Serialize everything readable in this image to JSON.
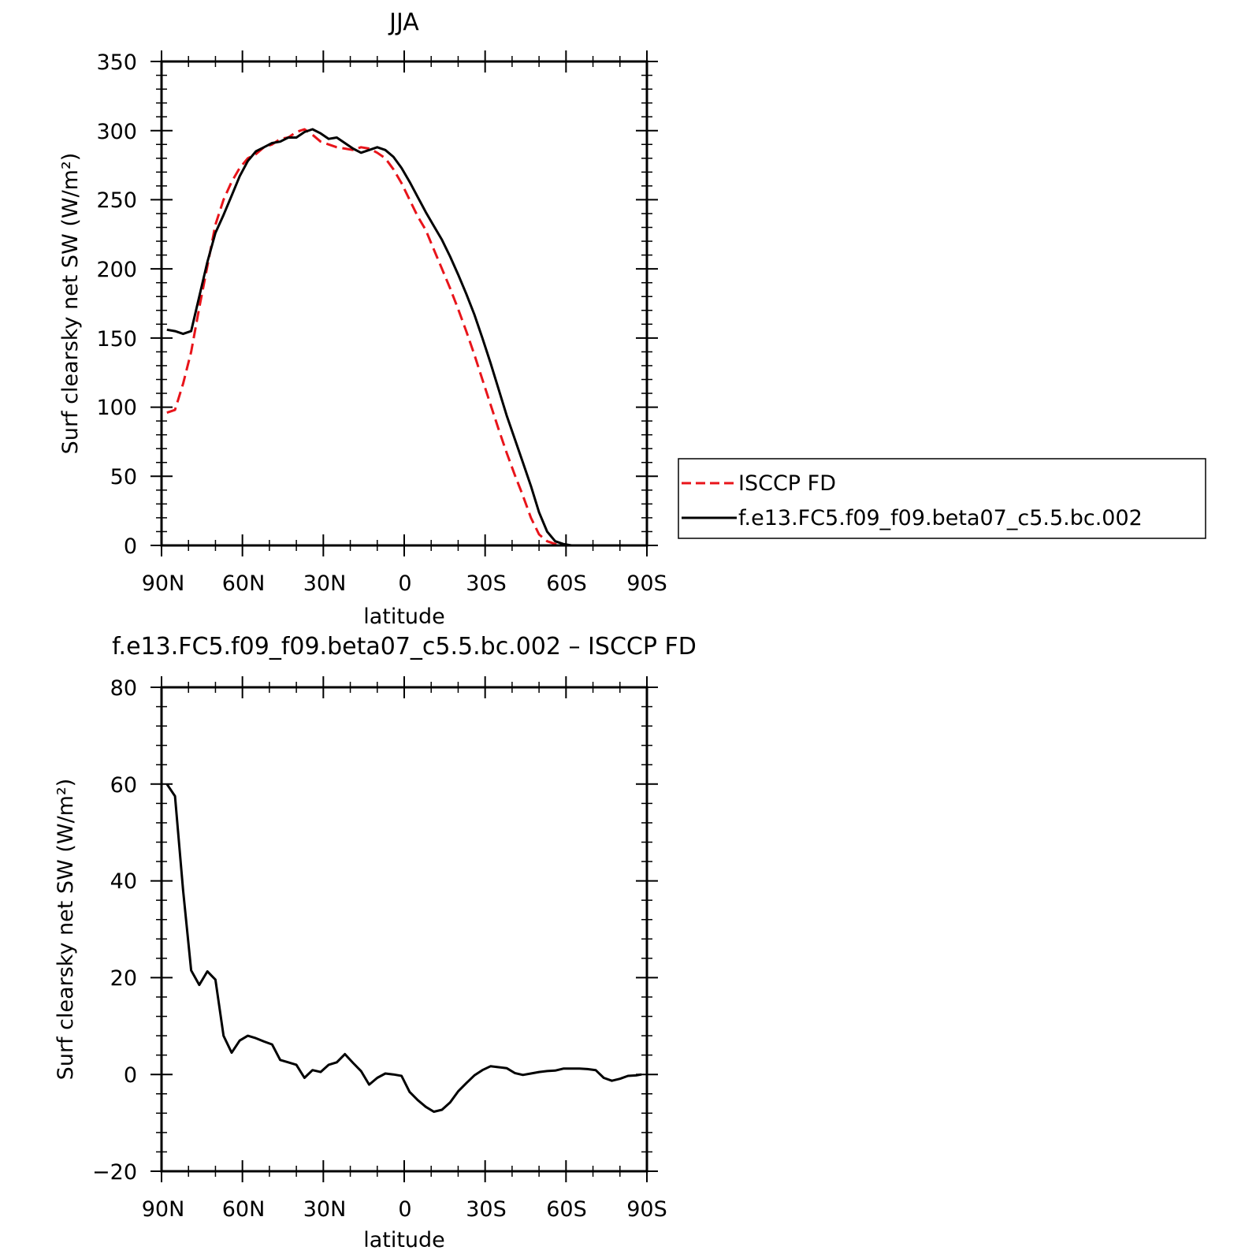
{
  "chart_data": [
    {
      "type": "line",
      "title": "JJA",
      "xlabel": "latitude",
      "ylabel": "Surf clearsky net SW (W/m²)",
      "xlim": [
        90,
        -90
      ],
      "ylim": [
        0,
        350
      ],
      "xticks": [
        90,
        60,
        30,
        0,
        -30,
        -60,
        -90
      ],
      "xtick_labels": [
        "90N",
        "60N",
        "30N",
        "0",
        "30S",
        "60S",
        "90S"
      ],
      "yticks": [
        0,
        50,
        100,
        150,
        200,
        250,
        300,
        350
      ],
      "ytick_labels": [
        "0",
        "50",
        "100",
        "150",
        "200",
        "250",
        "300",
        "350"
      ],
      "grid": false,
      "legend": "right",
      "series": [
        {
          "name": "ISCCP FD",
          "color": "#e8141a",
          "dash": "dashed",
          "x": [
            88,
            85,
            82,
            79,
            76,
            73,
            70,
            67,
            64,
            61,
            58,
            55,
            52,
            49,
            46,
            43,
            40,
            37,
            34,
            31,
            28,
            25,
            22,
            19,
            16,
            13,
            10,
            7,
            4,
            1,
            -2,
            -5,
            -8,
            -11,
            -14,
            -17,
            -20,
            -23,
            -26,
            -29,
            -32,
            -35,
            -38,
            -41,
            -44,
            -47,
            -50,
            -53,
            -56,
            -59,
            -62,
            -65,
            -68,
            -71,
            -74,
            -77,
            -80,
            -83,
            -86,
            -88
          ],
          "y": [
            96,
            98,
            117,
            140,
            172,
            202,
            232,
            250,
            263,
            273,
            280,
            283,
            288,
            290,
            294,
            295,
            299,
            301,
            297,
            292,
            290,
            288,
            287,
            286,
            288,
            287,
            284,
            280,
            272,
            262,
            250,
            238,
            228,
            214,
            200,
            186,
            171,
            155,
            138,
            120,
            102,
            84,
            67,
            51,
            36,
            20,
            8,
            3,
            1,
            0,
            0,
            0,
            0,
            0,
            0,
            0,
            0,
            0,
            0,
            0
          ]
        },
        {
          "name": "f.e13.FC5.f09_f09.beta07_c5.5.bc.002",
          "color": "#000000",
          "dash": "solid",
          "x": [
            88,
            85,
            82,
            79,
            76,
            73,
            70,
            67,
            64,
            61,
            58,
            55,
            52,
            49,
            46,
            43,
            40,
            37,
            34,
            31,
            28,
            25,
            22,
            19,
            16,
            13,
            10,
            7,
            4,
            1,
            -2,
            -5,
            -8,
            -11,
            -14,
            -17,
            -20,
            -23,
            -26,
            -29,
            -32,
            -35,
            -38,
            -41,
            -44,
            -47,
            -50,
            -53,
            -56,
            -59,
            -62,
            -65,
            -68,
            -71,
            -74,
            -77,
            -80,
            -83,
            -86,
            -88
          ],
          "y": [
            156,
            155,
            153,
            155,
            180,
            205,
            226,
            239,
            253,
            267,
            278,
            285,
            288,
            291,
            292,
            295,
            295,
            299,
            301,
            298,
            294,
            295,
            291,
            287,
            284,
            286,
            288,
            286,
            281,
            273,
            263,
            252,
            241,
            231,
            221,
            209,
            196,
            182,
            167,
            150,
            132,
            113,
            94,
            77,
            60,
            43,
            24,
            10,
            3,
            1,
            0,
            0,
            0,
            0,
            0,
            0,
            0,
            0,
            0,
            0
          ]
        }
      ]
    },
    {
      "type": "line",
      "title": "f.e13.FC5.f09_f09.beta07_c5.5.bc.002 – ISCCP FD",
      "xlabel": "latitude",
      "ylabel": "Surf clearsky net SW (W/m²)",
      "xlim": [
        90,
        -90
      ],
      "ylim": [
        -20,
        80
      ],
      "xticks": [
        90,
        60,
        30,
        0,
        -30,
        -60,
        -90
      ],
      "xtick_labels": [
        "90N",
        "60N",
        "30N",
        "0",
        "30S",
        "60S",
        "90S"
      ],
      "yticks": [
        -20,
        0,
        20,
        40,
        60,
        80
      ],
      "ytick_labels": [
        "−20",
        "0",
        "20",
        "40",
        "60",
        "80"
      ],
      "grid": false,
      "series": [
        {
          "color": "#000000",
          "dash": "solid",
          "x": [
            88,
            85,
            82,
            79,
            76,
            73,
            70,
            67,
            64,
            61,
            58,
            55,
            52,
            49,
            46,
            43,
            40,
            37,
            34,
            31,
            28,
            25,
            22,
            19,
            16,
            13,
            10,
            7,
            4,
            1,
            -2,
            -5,
            -8,
            -11,
            -14,
            -17,
            -20,
            -23,
            -26,
            -29,
            -32,
            -35,
            -38,
            -41,
            -44,
            -47,
            -50,
            -53,
            -56,
            -59,
            -62,
            -65,
            -68,
            -71,
            -74,
            -77,
            -80,
            -83,
            -86,
            -88
          ],
          "y": [
            60,
            57.5,
            38,
            21.5,
            18.5,
            21.3,
            19.6,
            8,
            4.5,
            7,
            8,
            7.5,
            6.8,
            6.2,
            3,
            2.5,
            2,
            -0.7,
            0.9,
            0.5,
            2,
            2.5,
            4.2,
            2.4,
            0.7,
            -2.1,
            -0.7,
            0.2,
            0,
            -0.3,
            -3.6,
            -5.3,
            -6.7,
            -7.7,
            -7.3,
            -5.8,
            -3.5,
            -1.8,
            -0.2,
            0.9,
            1.7,
            1.5,
            1.3,
            0.3,
            -0.1,
            0.2,
            0.5,
            0.7,
            0.8,
            1.2,
            1.2,
            1.2,
            1.1,
            0.9,
            -0.7,
            -1.3,
            -0.9,
            -0.3,
            -0.2,
            0
          ]
        }
      ]
    }
  ]
}
